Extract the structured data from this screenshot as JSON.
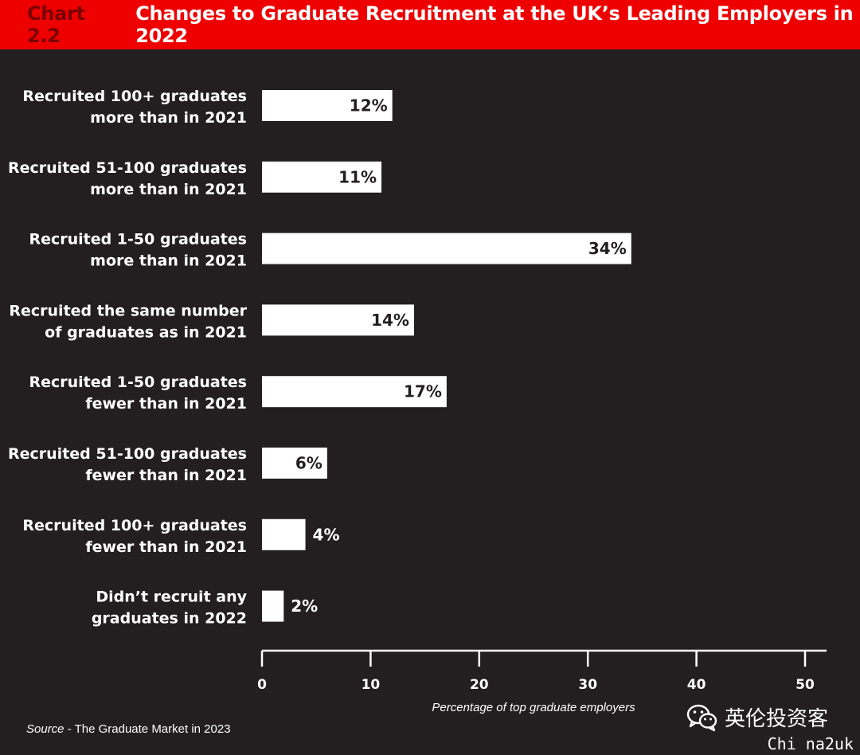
{
  "header": {
    "chart_number": "Chart 2.2",
    "title": "Changes to Graduate Recruitment at the UK’s Leading Employers in 2022"
  },
  "chart_data": {
    "type": "bar",
    "orientation": "horizontal",
    "title": "Changes to Graduate Recruitment at the UK’s Leading Employers in 2022",
    "categories": [
      [
        "Recruited 100+ graduates",
        "more than in 2021"
      ],
      [
        "Recruited 51-100 graduates",
        "more than in 2021"
      ],
      [
        "Recruited 1-50 graduates",
        "more than in 2021"
      ],
      [
        "Recruited the same number",
        "of graduates as in 2021"
      ],
      [
        "Recruited 1-50 graduates",
        "fewer than in 2021"
      ],
      [
        "Recruited 51-100 graduates",
        "fewer than in 2021"
      ],
      [
        "Recruited 100+ graduates",
        "fewer than in 2021"
      ],
      [
        "Didn’t recruit any",
        "graduates in 2022"
      ]
    ],
    "values": [
      12,
      11,
      34,
      14,
      17,
      6,
      4,
      2
    ],
    "value_labels": [
      "12%",
      "11%",
      "34%",
      "14%",
      "17%",
      "6%",
      "4%",
      "2%"
    ],
    "xlim": [
      0,
      50
    ],
    "xticks": [
      0,
      10,
      20,
      30,
      40,
      50
    ],
    "xlabel": "Percentage of top graduate employers",
    "grid": false,
    "bar_color": "#ffffff",
    "background_color": "#231f20"
  },
  "source": {
    "prefix": "Source",
    "text": " - The Graduate Market in 2023"
  },
  "brand": {
    "wechat_icon": "wechat-icon",
    "name": "英伦投资客",
    "watermark": "Chi na2uk"
  },
  "colors": {
    "title_bar": "#ee0000",
    "chart_number": "#7a0000",
    "label_text": "#ffffff",
    "value_text": "#231f20"
  }
}
